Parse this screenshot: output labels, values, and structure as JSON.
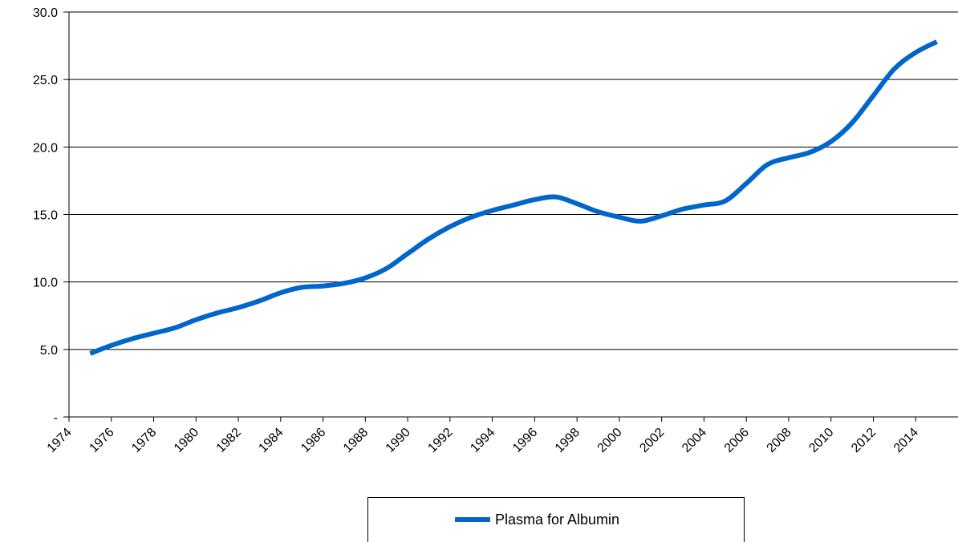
{
  "chart_data": {
    "type": "line",
    "title": "",
    "xlabel": "",
    "ylabel": "",
    "xlim": [
      1974,
      2016
    ],
    "ylim": [
      0,
      30
    ],
    "grid": "horizontal",
    "legend_position": "bottom",
    "y_ticks": [
      {
        "value": 0,
        "label": "-"
      },
      {
        "value": 5,
        "label": "5.0"
      },
      {
        "value": 10,
        "label": "10.0"
      },
      {
        "value": 15,
        "label": "15.0"
      },
      {
        "value": 20,
        "label": "20.0"
      },
      {
        "value": 25,
        "label": "25.0"
      },
      {
        "value": 30,
        "label": "30.0"
      }
    ],
    "x_tick_labels": [
      "1974",
      "1976",
      "1978",
      "1980",
      "1982",
      "1984",
      "1986",
      "1988",
      "1990",
      "1992",
      "1994",
      "1996",
      "1998",
      "2000",
      "2002",
      "2004",
      "2006",
      "2008",
      "2010",
      "2012",
      "2014"
    ],
    "series": [
      {
        "name": "Plasma for Albumin",
        "color": "#0066CC",
        "x": [
          1975,
          1976,
          1977,
          1978,
          1979,
          1980,
          1981,
          1982,
          1983,
          1984,
          1985,
          1986,
          1987,
          1988,
          1989,
          1990,
          1991,
          1992,
          1993,
          1994,
          1995,
          1996,
          1997,
          1998,
          1999,
          2000,
          2001,
          2002,
          2003,
          2004,
          2005,
          2006,
          2007,
          2008,
          2009,
          2010,
          2011,
          2012,
          2013,
          2014,
          2015
        ],
        "values": [
          4.7,
          5.3,
          5.8,
          6.2,
          6.6,
          7.2,
          7.7,
          8.1,
          8.6,
          9.2,
          9.6,
          9.7,
          9.9,
          10.3,
          11.0,
          12.1,
          13.2,
          14.1,
          14.8,
          15.3,
          15.7,
          16.1,
          16.3,
          15.8,
          15.2,
          14.8,
          14.5,
          14.9,
          15.4,
          15.7,
          16.0,
          17.3,
          18.7,
          19.2,
          19.6,
          20.4,
          21.8,
          23.8,
          25.8,
          27.0,
          27.8
        ]
      }
    ]
  }
}
